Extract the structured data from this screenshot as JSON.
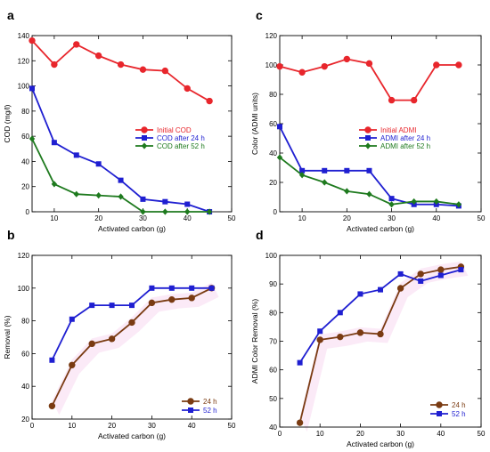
{
  "chart_data": [
    {
      "panel": "a",
      "type": "line",
      "xlabel": "Activated carbon (g)",
      "ylabel": "COD (mg/l)",
      "xlim": [
        5,
        50
      ],
      "ylim": [
        0,
        140
      ],
      "xticks": [
        10,
        20,
        30,
        40,
        50
      ],
      "yticks": [
        0,
        20,
        40,
        60,
        80,
        100,
        120,
        140
      ],
      "legend_position": "right",
      "series": [
        {
          "name": "Initial COD",
          "color": "#e8262c",
          "marker": "circle",
          "x": [
            5,
            10,
            15,
            20,
            25,
            30,
            35,
            40,
            45
          ],
          "y": [
            136,
            117,
            133,
            124,
            117,
            113,
            112,
            98,
            88
          ]
        },
        {
          "name": "COD after 24 h",
          "color": "#1f1fd1",
          "marker": "square",
          "x": [
            5,
            10,
            15,
            20,
            25,
            30,
            35,
            40,
            45
          ],
          "y": [
            98,
            55,
            45,
            38,
            25,
            10,
            8,
            6,
            0
          ]
        },
        {
          "name": "COD after 52 h",
          "color": "#1e7a1e",
          "marker": "diamond",
          "x": [
            5,
            10,
            15,
            20,
            25,
            30,
            35,
            40,
            45
          ],
          "y": [
            58,
            22,
            14,
            13,
            12,
            0,
            0,
            0,
            0
          ]
        }
      ]
    },
    {
      "panel": "c",
      "type": "line",
      "xlabel": "Activated carbon (g)",
      "ylabel": "Color (ADMI units)",
      "xlim": [
        5,
        50
      ],
      "ylim": [
        0,
        120
      ],
      "xticks": [
        10,
        20,
        30,
        40,
        50
      ],
      "yticks": [
        0,
        20,
        40,
        60,
        80,
        100,
        120
      ],
      "legend_position": "right",
      "series": [
        {
          "name": "Initial ADMI",
          "color": "#e8262c",
          "marker": "circle",
          "x": [
            5,
            10,
            15,
            20,
            25,
            30,
            35,
            40,
            45
          ],
          "y": [
            99,
            95,
            99,
            104,
            101,
            76,
            76,
            100,
            100
          ]
        },
        {
          "name": "ADMI after 24 h",
          "color": "#1f1fd1",
          "marker": "square",
          "x": [
            5,
            10,
            15,
            20,
            25,
            30,
            35,
            40,
            45
          ],
          "y": [
            58,
            28,
            28,
            28,
            28,
            9,
            5,
            5,
            4
          ]
        },
        {
          "name": "ADMI after 52 h",
          "color": "#1e7a1e",
          "marker": "diamond",
          "x": [
            5,
            10,
            15,
            20,
            25,
            30,
            35,
            40,
            45
          ],
          "y": [
            37,
            25,
            20,
            14,
            12,
            5,
            7,
            7,
            5
          ]
        }
      ]
    },
    {
      "panel": "b",
      "type": "line",
      "xlabel": "Activated carbon (g)",
      "ylabel": "Removal (%)",
      "xlim": [
        0,
        50
      ],
      "ylim": [
        20,
        120
      ],
      "xticks": [
        0,
        10,
        20,
        30,
        40,
        50
      ],
      "yticks": [
        20,
        40,
        60,
        80,
        100,
        120
      ],
      "legend_position": "bottom-right",
      "series": [
        {
          "name": "24 h",
          "color": "#7a3b12",
          "marker": "circle",
          "x": [
            5,
            10,
            15,
            20,
            25,
            30,
            35,
            40,
            45
          ],
          "y": [
            28,
            53,
            66,
            69,
            79,
            91,
            93,
            94,
            100
          ]
        },
        {
          "name": "52 h",
          "color": "#1f1fd1",
          "marker": "square",
          "x": [
            5,
            10,
            15,
            20,
            25,
            30,
            35,
            40,
            45
          ],
          "y": [
            56,
            81,
            89.5,
            89.5,
            89.5,
            100,
            100,
            100,
            100
          ]
        }
      ]
    },
    {
      "panel": "d",
      "type": "line",
      "xlabel": "Activated carbon (g)",
      "ylabel": "ADMI Color Removal (%)",
      "xlim": [
        0,
        50
      ],
      "ylim": [
        40,
        100
      ],
      "xticks": [
        0,
        10,
        20,
        30,
        40,
        50
      ],
      "yticks": [
        40,
        50,
        60,
        70,
        80,
        90,
        100
      ],
      "legend_position": "bottom-right",
      "series": [
        {
          "name": "24 h",
          "color": "#7a3b12",
          "marker": "circle",
          "x": [
            5,
            10,
            15,
            20,
            25,
            30,
            35,
            40,
            45
          ],
          "y": [
            41.5,
            70.5,
            71.5,
            73,
            72.5,
            88.5,
            93.5,
            95,
            96
          ]
        },
        {
          "name": "52 h",
          "color": "#1f1fd1",
          "marker": "square",
          "x": [
            5,
            10,
            15,
            20,
            25,
            30,
            35,
            40,
            45
          ],
          "y": [
            62.5,
            73.5,
            80,
            86.5,
            88,
            93.5,
            91,
            93,
            95
          ]
        }
      ]
    }
  ]
}
